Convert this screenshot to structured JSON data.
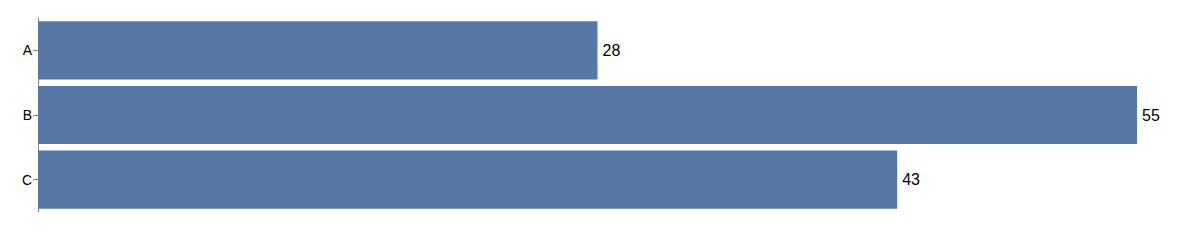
{
  "chart_data": {
    "type": "bar",
    "orientation": "horizontal",
    "categories": [
      "A",
      "B",
      "C"
    ],
    "values": [
      28,
      55,
      43
    ],
    "color": "#5778a4",
    "xlim": [
      0,
      55
    ],
    "data_labels": true,
    "tick_labels": "y",
    "grid": false
  }
}
